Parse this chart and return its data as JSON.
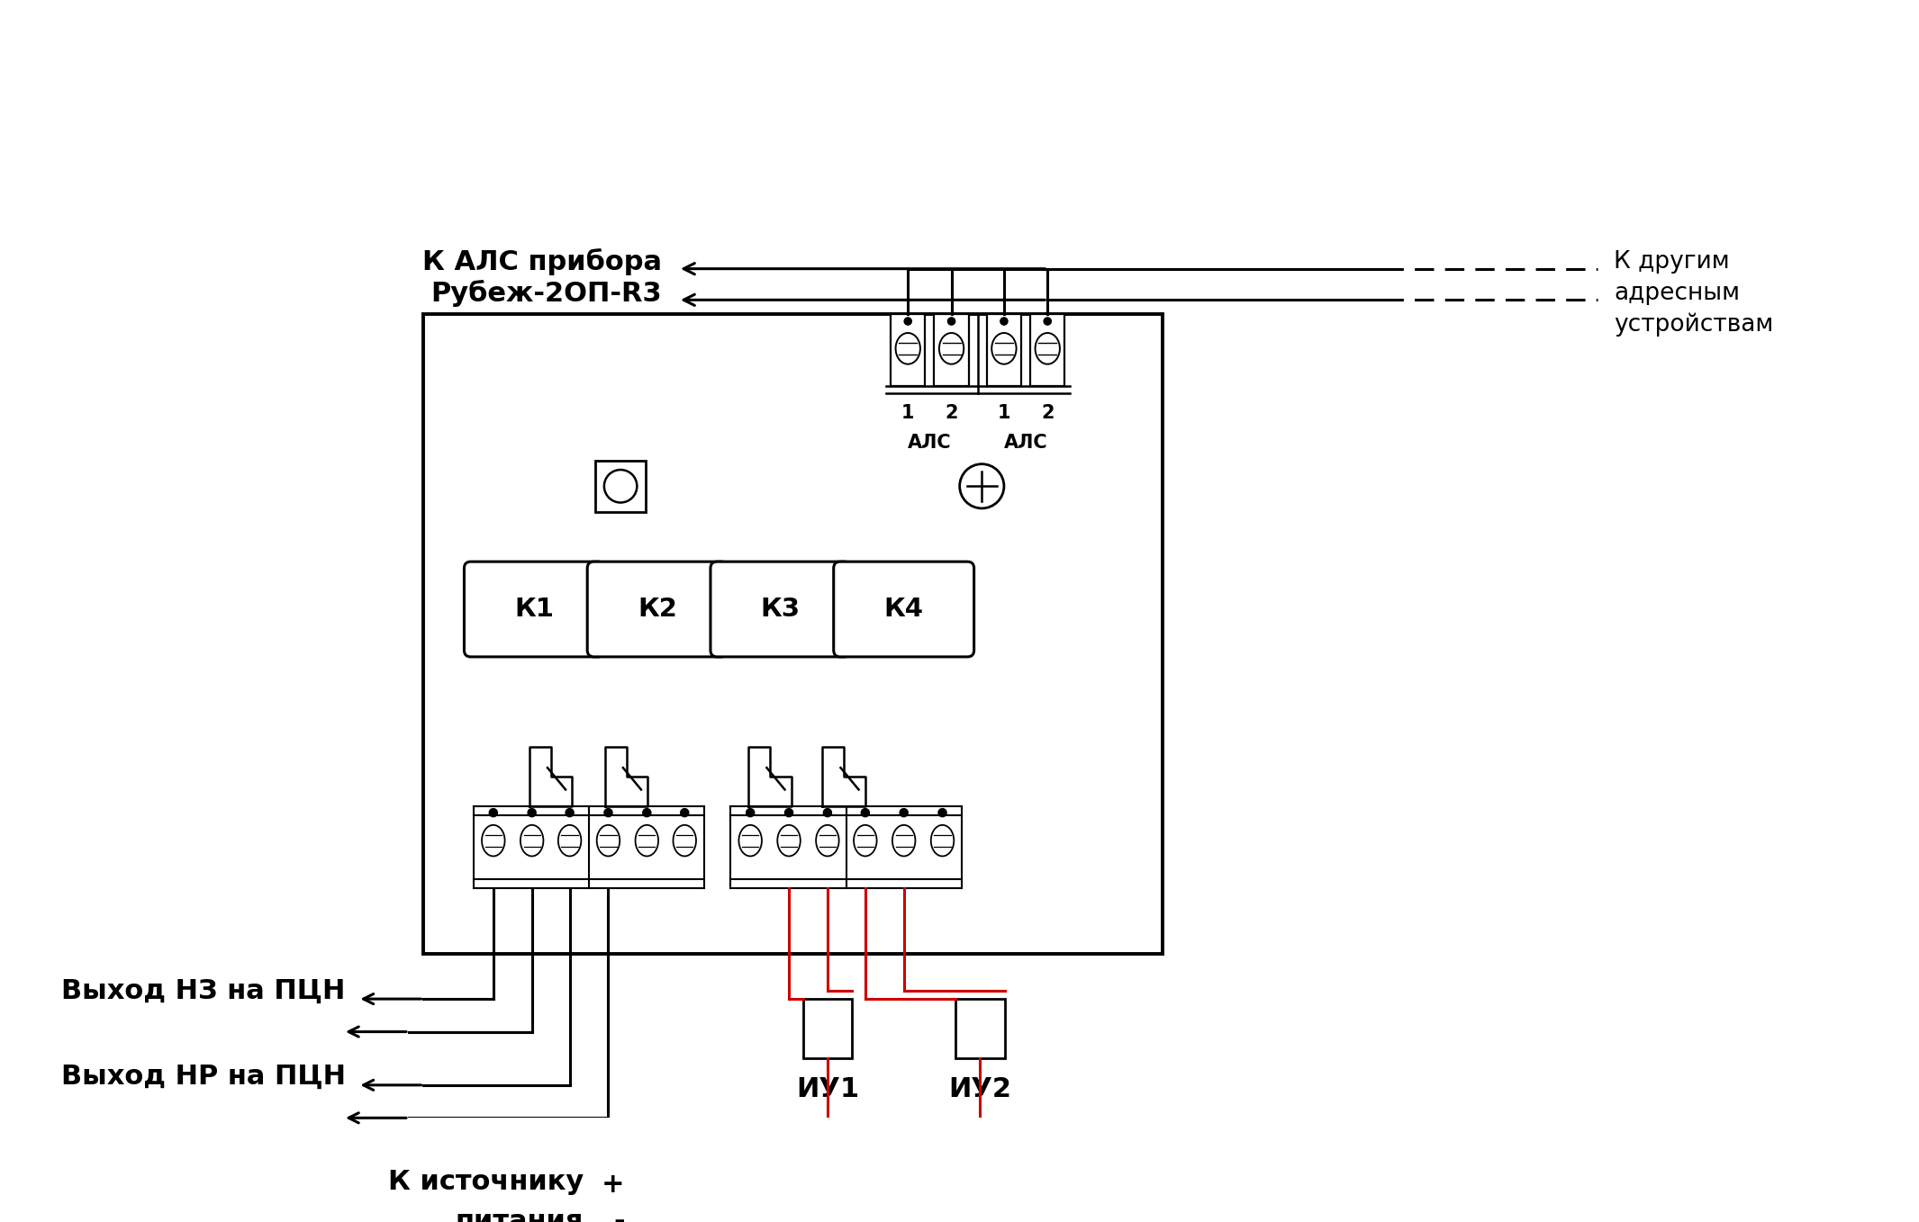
{
  "bg_color": "#ffffff",
  "line_color": "#000000",
  "red_color": "#cc0000",
  "fig_width": 21.31,
  "fig_height": 13.58,
  "dpi": 100,
  "label_ALS1": "К АЛС прибора",
  "label_ALS2": "Рубеж-2ОП-R3",
  "label_right1": "К другим",
  "label_right2": "адресным",
  "label_right3": "устройствам",
  "label_NZ": "Выход НЗ на ПЦН",
  "label_NR": "Выход НР на ПЦН",
  "label_source1": "К источнику",
  "label_source2": "питания",
  "label_IU1": "ИУ1",
  "label_IU2": "ИУ2",
  "label_K": [
    "К1",
    "К2",
    "К3",
    "К4"
  ],
  "label_plus": "+",
  "label_minus": "-",
  "label_ALS_nums": [
    "1",
    "2",
    "1",
    "2"
  ],
  "label_ALS_name1": "АЛС",
  "label_ALS_name2": "АЛС",
  "font_large": 22,
  "font_med": 19,
  "font_small": 15
}
